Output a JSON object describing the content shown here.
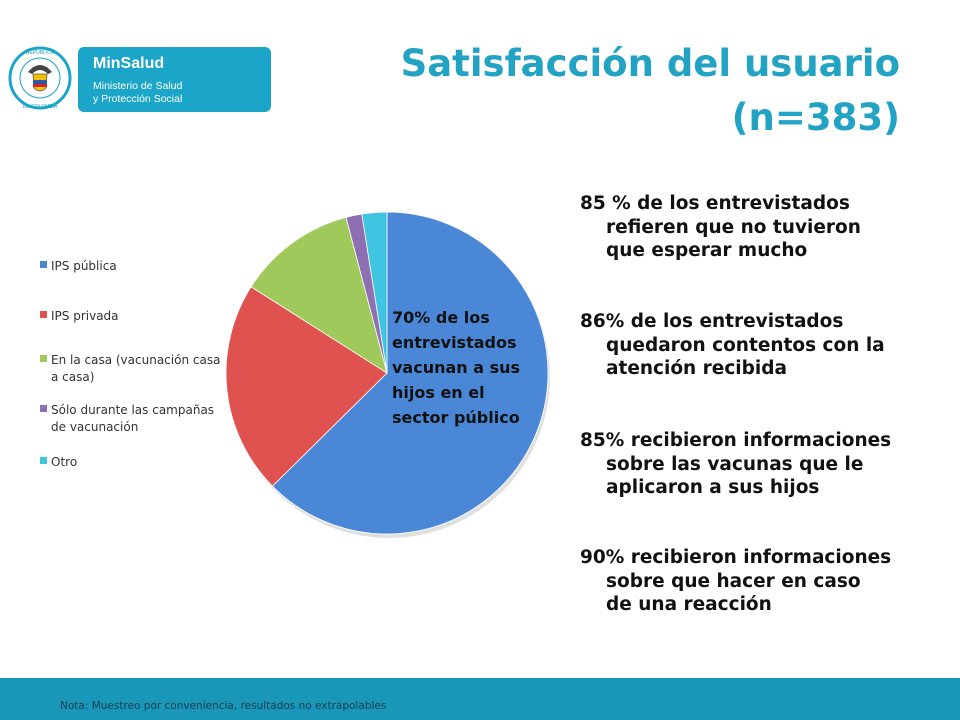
{
  "logo": {
    "seal_top_text": "REPÚBLICA",
    "seal_bottom_text": "DE COLOMBIA",
    "name": "MinSalud",
    "sub_line1": "Ministerio de Salud",
    "sub_line2": "y Protección Social",
    "brand_color": "#1ba5c8"
  },
  "title": {
    "line1": "Satisfacción del usuario",
    "line2": "(n=383)",
    "color": "#22a3c3"
  },
  "chart_data": {
    "type": "pie",
    "categories": [
      "IPS pública",
      "IPS privada",
      "En la casa (vacunación casa a casa)",
      "Sólo durante las campañas de vacunación",
      "Otro"
    ],
    "values": [
      62.6,
      21.4,
      11.9,
      1.6,
      2.5
    ],
    "colors": [
      "#4a87d6",
      "#e0524f",
      "#9fca5b",
      "#8e6fb4",
      "#3fc4e2"
    ],
    "legend_position": "left",
    "annotation": [
      "70% de los",
      "entrevistados",
      "vacunan a sus",
      "hijos en el",
      "sector público"
    ]
  },
  "stats": [
    {
      "first": "85 % de los entrevistados",
      "rest": [
        "refieren que no tuvieron",
        "que esperar mucho"
      ]
    },
    {
      "first": "86% de los entrevistados",
      "rest": [
        "quedaron contentos con la",
        "atención recibida"
      ]
    },
    {
      "first": "85% recibieron informaciones",
      "rest": [
        "sobre las vacunas que le",
        "aplicaron a sus hijos"
      ]
    },
    {
      "first": "90% recibieron informaciones",
      "rest": [
        "sobre que hacer en caso",
        "de una reacción"
      ]
    }
  ],
  "footer": {
    "note": "Nota: Muestreo por conveniencia, resultados no extrapolables",
    "color": "#1897b8"
  }
}
